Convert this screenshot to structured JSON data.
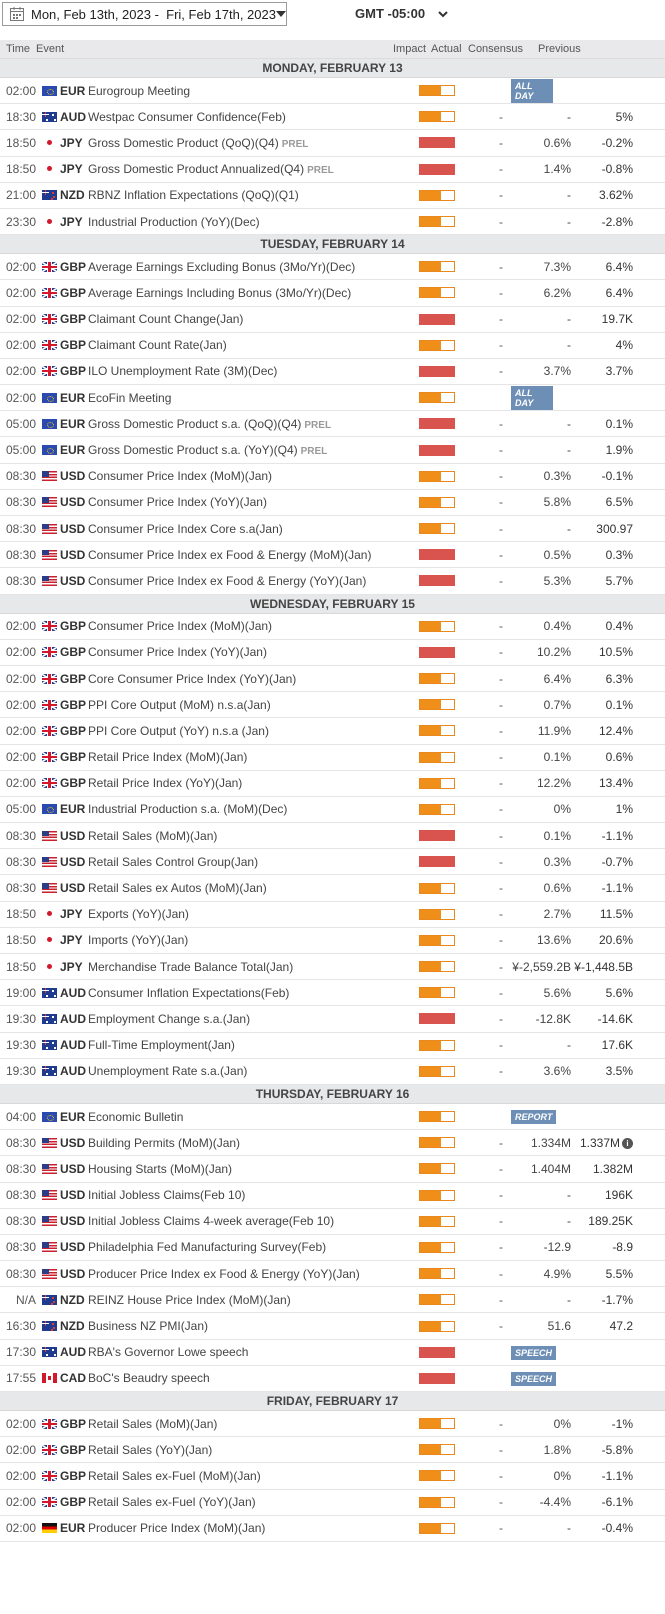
{
  "header": {
    "date_range": "Mon, Feb 13th, 2023 -  Fri, Feb 17th, 2023",
    "timezone": "GMT -05:00"
  },
  "columns": {
    "time": "Time",
    "event": "Event",
    "impact": "Impact",
    "actual": "Actual",
    "consensus": "Consensus",
    "previous": "Previous"
  },
  "days": [
    {
      "label": "MONDAY, FEBRUARY 13",
      "rows": [
        {
          "time": "02:00",
          "flag": "eur",
          "cur": "EUR",
          "event": "Eurogroup Meeting",
          "prel": "",
          "impact": "medium",
          "actual": "",
          "consensus": "",
          "previous": "",
          "badge": "ALL DAY"
        },
        {
          "time": "18:30",
          "flag": "aud",
          "cur": "AUD",
          "event": "Westpac Consumer Confidence(Feb)",
          "prel": "",
          "impact": "medium",
          "actual": "-",
          "consensus": "-",
          "previous": "5%",
          "badge": ""
        },
        {
          "time": "18:50",
          "flag": "jpy",
          "cur": "JPY",
          "event": "Gross Domestic Product (QoQ)(Q4)",
          "prel": "PREL",
          "impact": "high",
          "actual": "-",
          "consensus": "0.6%",
          "previous": "-0.2%",
          "badge": ""
        },
        {
          "time": "18:50",
          "flag": "jpy",
          "cur": "JPY",
          "event": "Gross Domestic Product Annualized(Q4)",
          "prel": "PREL",
          "impact": "high",
          "actual": "-",
          "consensus": "1.4%",
          "previous": "-0.8%",
          "badge": ""
        },
        {
          "time": "21:00",
          "flag": "nzd",
          "cur": "NZD",
          "event": "RBNZ Inflation Expectations (QoQ)(Q1)",
          "prel": "",
          "impact": "medium",
          "actual": "-",
          "consensus": "-",
          "previous": "3.62%",
          "badge": ""
        },
        {
          "time": "23:30",
          "flag": "jpy",
          "cur": "JPY",
          "event": "Industrial Production (YoY)(Dec)",
          "prel": "",
          "impact": "medium",
          "actual": "-",
          "consensus": "-",
          "previous": "-2.8%",
          "badge": ""
        }
      ]
    },
    {
      "label": "TUESDAY, FEBRUARY 14",
      "rows": [
        {
          "time": "02:00",
          "flag": "gbp",
          "cur": "GBP",
          "event": "Average Earnings Excluding Bonus (3Mo/Yr)(Dec)",
          "prel": "",
          "impact": "medium",
          "actual": "-",
          "consensus": "7.3%",
          "previous": "6.4%",
          "badge": ""
        },
        {
          "time": "02:00",
          "flag": "gbp",
          "cur": "GBP",
          "event": "Average Earnings Including Bonus (3Mo/Yr)(Dec)",
          "prel": "",
          "impact": "medium",
          "actual": "-",
          "consensus": "6.2%",
          "previous": "6.4%",
          "badge": ""
        },
        {
          "time": "02:00",
          "flag": "gbp",
          "cur": "GBP",
          "event": "Claimant Count Change(Jan)",
          "prel": "",
          "impact": "high",
          "actual": "-",
          "consensus": "-",
          "previous": "19.7K",
          "badge": ""
        },
        {
          "time": "02:00",
          "flag": "gbp",
          "cur": "GBP",
          "event": "Claimant Count Rate(Jan)",
          "prel": "",
          "impact": "medium",
          "actual": "-",
          "consensus": "-",
          "previous": "4%",
          "badge": ""
        },
        {
          "time": "02:00",
          "flag": "gbp",
          "cur": "GBP",
          "event": "ILO Unemployment Rate (3M)(Dec)",
          "prel": "",
          "impact": "high",
          "actual": "-",
          "consensus": "3.7%",
          "previous": "3.7%",
          "badge": ""
        },
        {
          "time": "02:00",
          "flag": "eur",
          "cur": "EUR",
          "event": "EcoFin Meeting",
          "prel": "",
          "impact": "medium",
          "actual": "",
          "consensus": "",
          "previous": "",
          "badge": "ALL DAY"
        },
        {
          "time": "05:00",
          "flag": "eur",
          "cur": "EUR",
          "event": "Gross Domestic Product s.a. (QoQ)(Q4)",
          "prel": "PREL",
          "impact": "high",
          "actual": "-",
          "consensus": "-",
          "previous": "0.1%",
          "badge": ""
        },
        {
          "time": "05:00",
          "flag": "eur",
          "cur": "EUR",
          "event": "Gross Domestic Product s.a. (YoY)(Q4)",
          "prel": "PREL",
          "impact": "high",
          "actual": "-",
          "consensus": "-",
          "previous": "1.9%",
          "badge": ""
        },
        {
          "time": "08:30",
          "flag": "usd",
          "cur": "USD",
          "event": "Consumer Price Index (MoM)(Jan)",
          "prel": "",
          "impact": "medium",
          "actual": "-",
          "consensus": "0.3%",
          "previous": "-0.1%",
          "badge": ""
        },
        {
          "time": "08:30",
          "flag": "usd",
          "cur": "USD",
          "event": "Consumer Price Index (YoY)(Jan)",
          "prel": "",
          "impact": "medium",
          "actual": "-",
          "consensus": "5.8%",
          "previous": "6.5%",
          "badge": ""
        },
        {
          "time": "08:30",
          "flag": "usd",
          "cur": "USD",
          "event": "Consumer Price Index Core s.a(Jan)",
          "prel": "",
          "impact": "medium",
          "actual": "-",
          "consensus": "-",
          "previous": "300.97",
          "badge": ""
        },
        {
          "time": "08:30",
          "flag": "usd",
          "cur": "USD",
          "event": "Consumer Price Index ex Food & Energy (MoM)(Jan)",
          "prel": "",
          "impact": "high",
          "actual": "-",
          "consensus": "0.5%",
          "previous": "0.3%",
          "badge": ""
        },
        {
          "time": "08:30",
          "flag": "usd",
          "cur": "USD",
          "event": "Consumer Price Index ex Food & Energy (YoY)(Jan)",
          "prel": "",
          "impact": "high",
          "actual": "-",
          "consensus": "5.3%",
          "previous": "5.7%",
          "badge": ""
        }
      ]
    },
    {
      "label": "WEDNESDAY, FEBRUARY 15",
      "rows": [
        {
          "time": "02:00",
          "flag": "gbp",
          "cur": "GBP",
          "event": "Consumer Price Index (MoM)(Jan)",
          "prel": "",
          "impact": "medium",
          "actual": "-",
          "consensus": "0.4%",
          "previous": "0.4%",
          "badge": ""
        },
        {
          "time": "02:00",
          "flag": "gbp",
          "cur": "GBP",
          "event": "Consumer Price Index (YoY)(Jan)",
          "prel": "",
          "impact": "high",
          "actual": "-",
          "consensus": "10.2%",
          "previous": "10.5%",
          "badge": ""
        },
        {
          "time": "02:00",
          "flag": "gbp",
          "cur": "GBP",
          "event": "Core Consumer Price Index (YoY)(Jan)",
          "prel": "",
          "impact": "medium",
          "actual": "-",
          "consensus": "6.4%",
          "previous": "6.3%",
          "badge": ""
        },
        {
          "time": "02:00",
          "flag": "gbp",
          "cur": "GBP",
          "event": "PPI Core Output (MoM) n.s.a(Jan)",
          "prel": "",
          "impact": "medium",
          "actual": "-",
          "consensus": "0.7%",
          "previous": "0.1%",
          "badge": ""
        },
        {
          "time": "02:00",
          "flag": "gbp",
          "cur": "GBP",
          "event": "PPI Core Output (YoY) n.s.a (Jan)",
          "prel": "",
          "impact": "medium",
          "actual": "-",
          "consensus": "11.9%",
          "previous": "12.4%",
          "badge": ""
        },
        {
          "time": "02:00",
          "flag": "gbp",
          "cur": "GBP",
          "event": "Retail Price Index (MoM)(Jan)",
          "prel": "",
          "impact": "medium",
          "actual": "-",
          "consensus": "0.1%",
          "previous": "0.6%",
          "badge": ""
        },
        {
          "time": "02:00",
          "flag": "gbp",
          "cur": "GBP",
          "event": "Retail Price Index (YoY)(Jan)",
          "prel": "",
          "impact": "medium",
          "actual": "-",
          "consensus": "12.2%",
          "previous": "13.4%",
          "badge": ""
        },
        {
          "time": "05:00",
          "flag": "eur",
          "cur": "EUR",
          "event": "Industrial Production s.a. (MoM)(Dec)",
          "prel": "",
          "impact": "medium",
          "actual": "-",
          "consensus": "0%",
          "previous": "1%",
          "badge": ""
        },
        {
          "time": "08:30",
          "flag": "usd",
          "cur": "USD",
          "event": "Retail Sales (MoM)(Jan)",
          "prel": "",
          "impact": "high",
          "actual": "-",
          "consensus": "0.1%",
          "previous": "-1.1%",
          "badge": ""
        },
        {
          "time": "08:30",
          "flag": "usd",
          "cur": "USD",
          "event": "Retail Sales Control Group(Jan)",
          "prel": "",
          "impact": "high",
          "actual": "-",
          "consensus": "0.3%",
          "previous": "-0.7%",
          "badge": ""
        },
        {
          "time": "08:30",
          "flag": "usd",
          "cur": "USD",
          "event": "Retail Sales ex Autos (MoM)(Jan)",
          "prel": "",
          "impact": "medium",
          "actual": "-",
          "consensus": "0.6%",
          "previous": "-1.1%",
          "badge": ""
        },
        {
          "time": "18:50",
          "flag": "jpy",
          "cur": "JPY",
          "event": "Exports (YoY)(Jan)",
          "prel": "",
          "impact": "medium",
          "actual": "-",
          "consensus": "2.7%",
          "previous": "11.5%",
          "badge": ""
        },
        {
          "time": "18:50",
          "flag": "jpy",
          "cur": "JPY",
          "event": "Imports (YoY)(Jan)",
          "prel": "",
          "impact": "medium",
          "actual": "-",
          "consensus": "13.6%",
          "previous": "20.6%",
          "badge": ""
        },
        {
          "time": "18:50",
          "flag": "jpy",
          "cur": "JPY",
          "event": "Merchandise Trade Balance Total(Jan)",
          "prel": "",
          "impact": "medium",
          "actual": "-",
          "consensus": "¥-2,559.2B",
          "previous": "¥-1,448.5B",
          "badge": ""
        },
        {
          "time": "19:00",
          "flag": "aud",
          "cur": "AUD",
          "event": "Consumer Inflation Expectations(Feb)",
          "prel": "",
          "impact": "medium",
          "actual": "-",
          "consensus": "5.6%",
          "previous": "5.6%",
          "badge": ""
        },
        {
          "time": "19:30",
          "flag": "aud",
          "cur": "AUD",
          "event": "Employment Change s.a.(Jan)",
          "prel": "",
          "impact": "high",
          "actual": "-",
          "consensus": "-12.8K",
          "previous": "-14.6K",
          "badge": ""
        },
        {
          "time": "19:30",
          "flag": "aud",
          "cur": "AUD",
          "event": "Full-Time Employment(Jan)",
          "prel": "",
          "impact": "medium",
          "actual": "-",
          "consensus": "-",
          "previous": "17.6K",
          "badge": ""
        },
        {
          "time": "19:30",
          "flag": "aud",
          "cur": "AUD",
          "event": "Unemployment Rate s.a.(Jan)",
          "prel": "",
          "impact": "medium",
          "actual": "-",
          "consensus": "3.6%",
          "previous": "3.5%",
          "badge": ""
        }
      ]
    },
    {
      "label": "THURSDAY, FEBRUARY 16",
      "rows": [
        {
          "time": "04:00",
          "flag": "eur",
          "cur": "EUR",
          "event": "Economic Bulletin",
          "prel": "",
          "impact": "medium",
          "actual": "",
          "consensus": "",
          "previous": "",
          "badge": "REPORT"
        },
        {
          "time": "08:30",
          "flag": "usd",
          "cur": "USD",
          "event": "Building Permits (MoM)(Jan)",
          "prel": "",
          "impact": "medium",
          "actual": "-",
          "consensus": "1.334M",
          "previous": "1.337M",
          "badge": "",
          "info": true
        },
        {
          "time": "08:30",
          "flag": "usd",
          "cur": "USD",
          "event": "Housing Starts (MoM)(Jan)",
          "prel": "",
          "impact": "medium",
          "actual": "-",
          "consensus": "1.404M",
          "previous": "1.382M",
          "badge": ""
        },
        {
          "time": "08:30",
          "flag": "usd",
          "cur": "USD",
          "event": "Initial Jobless Claims(Feb 10)",
          "prel": "",
          "impact": "medium",
          "actual": "-",
          "consensus": "-",
          "previous": "196K",
          "badge": ""
        },
        {
          "time": "08:30",
          "flag": "usd",
          "cur": "USD",
          "event": "Initial Jobless Claims 4-week average(Feb 10)",
          "prel": "",
          "impact": "medium",
          "actual": "-",
          "consensus": "-",
          "previous": "189.25K",
          "badge": ""
        },
        {
          "time": "08:30",
          "flag": "usd",
          "cur": "USD",
          "event": "Philadelphia Fed Manufacturing Survey(Feb)",
          "prel": "",
          "impact": "medium",
          "actual": "-",
          "consensus": "-12.9",
          "previous": "-8.9",
          "badge": ""
        },
        {
          "time": "08:30",
          "flag": "usd",
          "cur": "USD",
          "event": "Producer Price Index ex Food & Energy (YoY)(Jan)",
          "prel": "",
          "impact": "medium",
          "actual": "-",
          "consensus": "4.9%",
          "previous": "5.5%",
          "badge": ""
        },
        {
          "time": "N/A",
          "flag": "nzd",
          "cur": "NZD",
          "event": "REINZ House Price Index (MoM)(Jan)",
          "prel": "",
          "impact": "medium",
          "actual": "-",
          "consensus": "-",
          "previous": "-1.7%",
          "badge": ""
        },
        {
          "time": "16:30",
          "flag": "nzd",
          "cur": "NZD",
          "event": "Business NZ PMI(Jan)",
          "prel": "",
          "impact": "medium",
          "actual": "-",
          "consensus": "51.6",
          "previous": "47.2",
          "badge": ""
        },
        {
          "time": "17:30",
          "flag": "aud",
          "cur": "AUD",
          "event": "RBA's Governor Lowe speech",
          "prel": "",
          "impact": "high",
          "actual": "",
          "consensus": "",
          "previous": "",
          "badge": "SPEECH"
        },
        {
          "time": "17:55",
          "flag": "cad",
          "cur": "CAD",
          "event": "BoC's Beaudry speech",
          "prel": "",
          "impact": "high",
          "actual": "",
          "consensus": "",
          "previous": "",
          "badge": "SPEECH"
        }
      ]
    },
    {
      "label": "FRIDAY, FEBRUARY 17",
      "rows": [
        {
          "time": "02:00",
          "flag": "gbp",
          "cur": "GBP",
          "event": "Retail Sales (MoM)(Jan)",
          "prel": "",
          "impact": "medium",
          "actual": "-",
          "consensus": "0%",
          "previous": "-1%",
          "badge": ""
        },
        {
          "time": "02:00",
          "flag": "gbp",
          "cur": "GBP",
          "event": "Retail Sales (YoY)(Jan)",
          "prel": "",
          "impact": "medium",
          "actual": "-",
          "consensus": "1.8%",
          "previous": "-5.8%",
          "badge": ""
        },
        {
          "time": "02:00",
          "flag": "gbp",
          "cur": "GBP",
          "event": "Retail Sales ex-Fuel (MoM)(Jan)",
          "prel": "",
          "impact": "medium",
          "actual": "-",
          "consensus": "0%",
          "previous": "-1.1%",
          "badge": ""
        },
        {
          "time": "02:00",
          "flag": "gbp",
          "cur": "GBP",
          "event": "Retail Sales ex-Fuel (YoY)(Jan)",
          "prel": "",
          "impact": "medium",
          "actual": "-",
          "consensus": "-4.4%",
          "previous": "-6.1%",
          "badge": ""
        },
        {
          "time": "02:00",
          "flag": "deu",
          "cur": "EUR",
          "event": "Producer Price Index (MoM)(Jan)",
          "prel": "",
          "impact": "medium",
          "actual": "-",
          "consensus": "-",
          "previous": "-0.4%",
          "badge": ""
        }
      ]
    }
  ]
}
